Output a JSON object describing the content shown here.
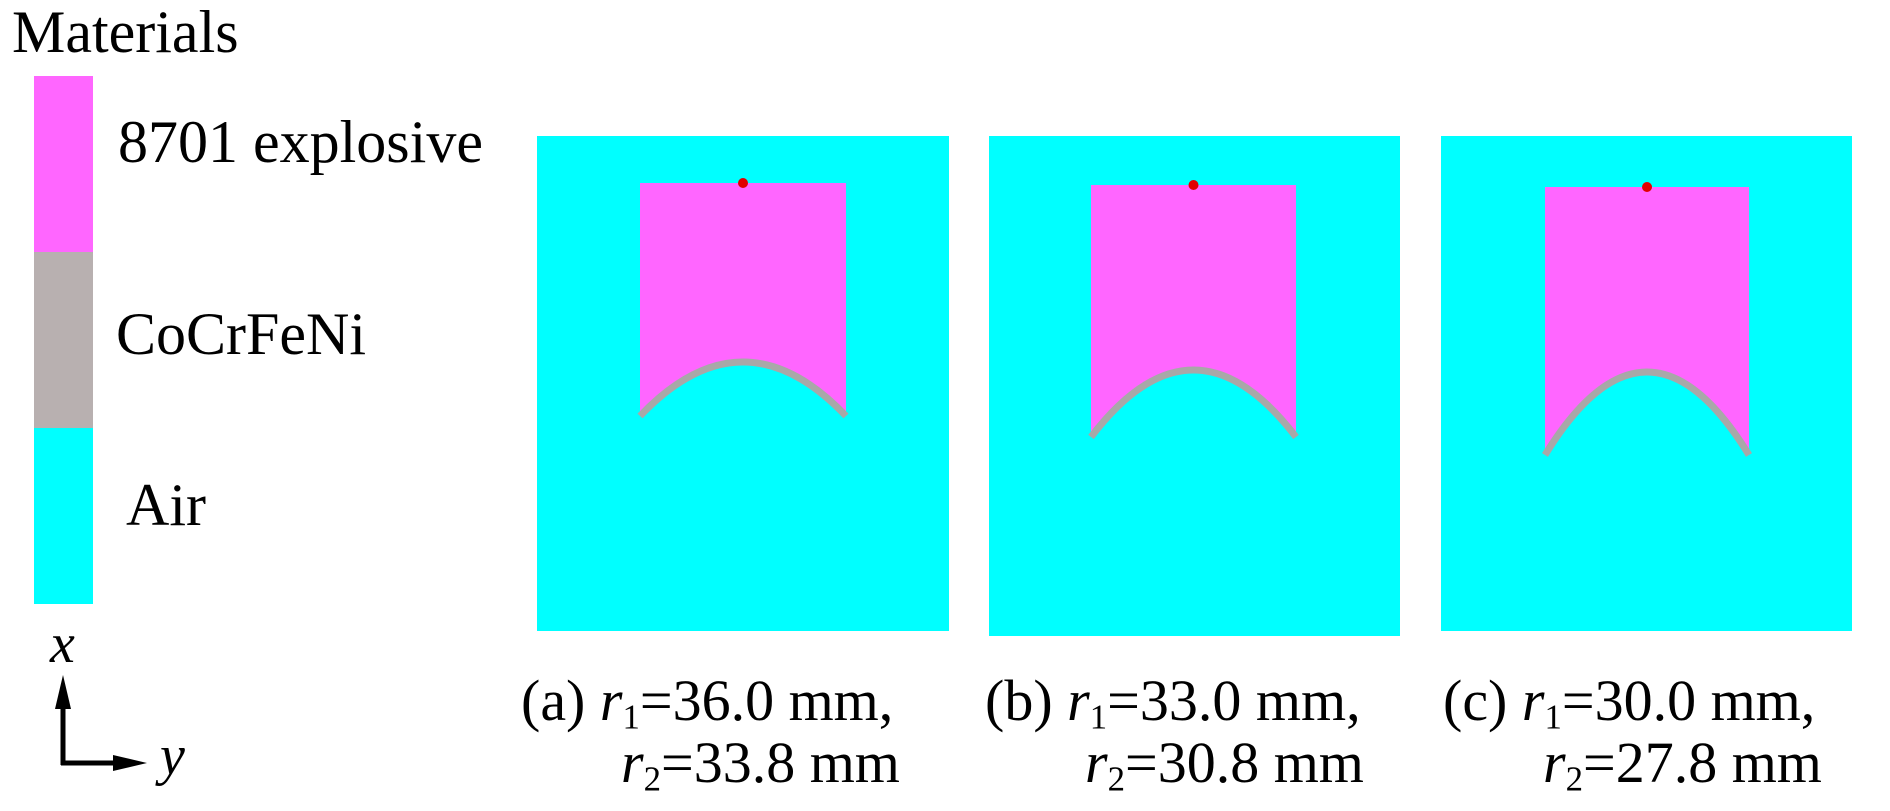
{
  "legend": {
    "title": "Materials",
    "items": [
      {
        "label": "8701 explosive",
        "color": "#ff66ff"
      },
      {
        "label": "CoCrFeNi",
        "color": "#b8b0b0"
      },
      {
        "label": "Air",
        "color": "#00ffff"
      }
    ]
  },
  "axes": {
    "vertical": "x",
    "horizontal": "y"
  },
  "colors": {
    "air": "#00ffff",
    "explosive": "#ff66ff",
    "liner": "#a8a8a8",
    "detonation_point": "#e00000"
  },
  "panels": [
    {
      "tag": "(a)",
      "r1_sym": "r",
      "r1_sub": "1",
      "r1_val": "=36.0 mm,",
      "r2_sym": "r",
      "r2_sub": "2",
      "r2_val": "=33.8 mm"
    },
    {
      "tag": "(b)",
      "r1_sym": "r",
      "r1_sub": "1",
      "r1_val": "=33.0 mm,",
      "r2_sym": "r",
      "r2_sub": "2",
      "r2_val": "=30.8 mm"
    },
    {
      "tag": "(c)",
      "r1_sym": "r",
      "r1_sub": "1",
      "r1_val": "=30.0 mm,",
      "r2_sym": "r",
      "r2_sub": "2",
      "r2_val": "=27.8 mm"
    }
  ]
}
